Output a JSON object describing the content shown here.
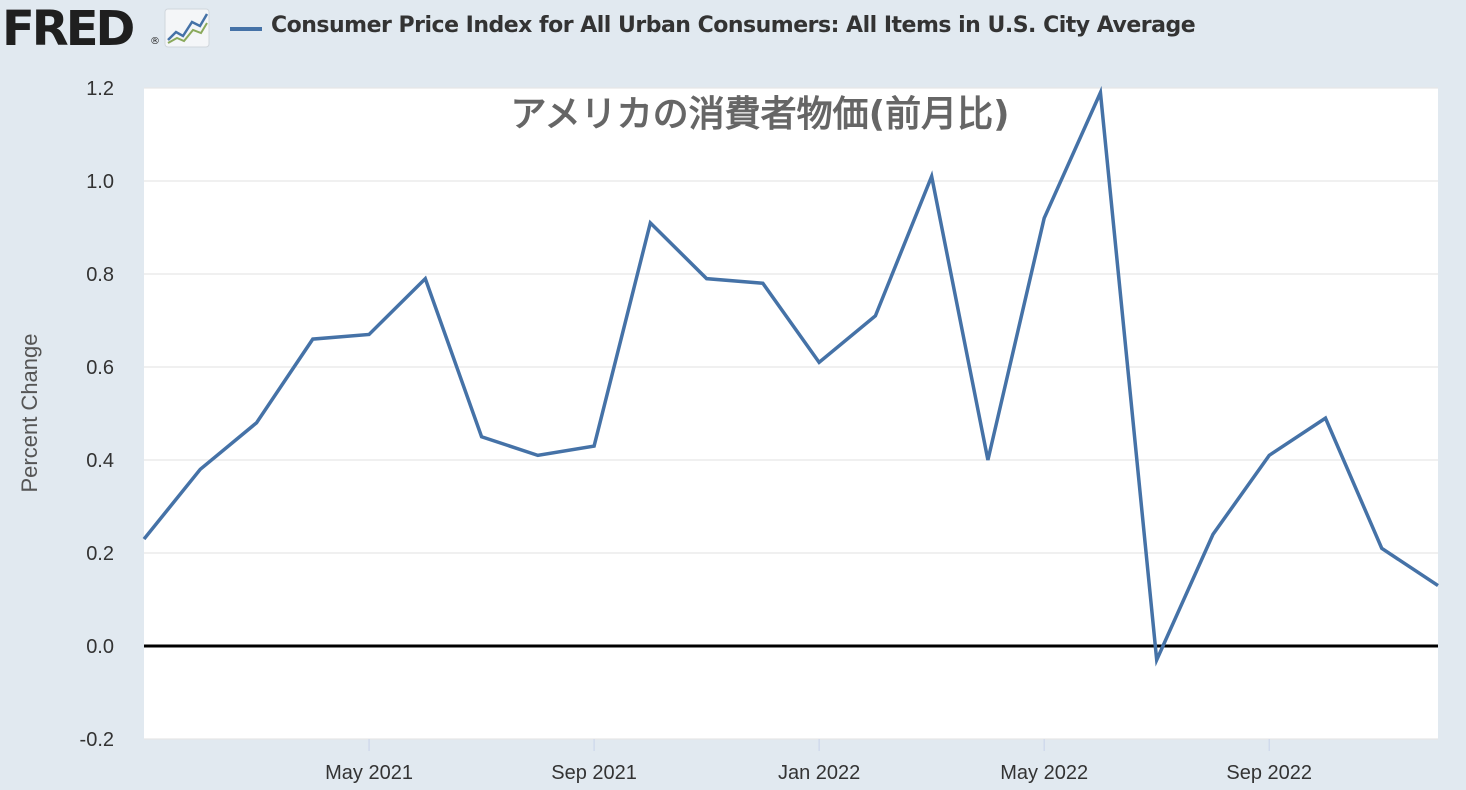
{
  "header": {
    "logo_text": "FRED",
    "logo_reg": "®",
    "series_title": "Consumer Price Index for All Urban Consumers: All Items in U.S. City Average"
  },
  "colors": {
    "series": "#4572a7",
    "plot_bg": "#ffffff",
    "page_bg": "#e1e9f0",
    "zero_line": "#000000",
    "grid": "#e6e6e6"
  },
  "chart_data": {
    "type": "line",
    "title": "アメリカの消費者物価(前月比)",
    "xlabel": "",
    "ylabel": "Percent Change",
    "ylim": [
      -0.2,
      1.2
    ],
    "yticks": [
      -0.2,
      0.0,
      0.2,
      0.4,
      0.6,
      0.8,
      1.0,
      1.2
    ],
    "ytick_labels": [
      "-0.2",
      "0.0",
      "0.2",
      "0.4",
      "0.6",
      "0.8",
      "1.0",
      "1.2"
    ],
    "xticks": [
      {
        "date": "2021-05",
        "label": "May 2021"
      },
      {
        "date": "2021-09",
        "label": "Sep 2021"
      },
      {
        "date": "2022-01",
        "label": "Jan 2022"
      },
      {
        "date": "2022-05",
        "label": "May 2022"
      },
      {
        "date": "2022-09",
        "label": "Sep 2022"
      }
    ],
    "xlim": [
      "2021-01",
      "2022-12"
    ],
    "grid": true,
    "legend": "top-left",
    "x": [
      "2021-01",
      "2021-02",
      "2021-03",
      "2021-04",
      "2021-05",
      "2021-06",
      "2021-07",
      "2021-08",
      "2021-09",
      "2021-10",
      "2021-11",
      "2021-12",
      "2022-01",
      "2022-02",
      "2022-03",
      "2022-04",
      "2022-05",
      "2022-06",
      "2022-07",
      "2022-08",
      "2022-09",
      "2022-10",
      "2022-11",
      "2022-12"
    ],
    "series": [
      {
        "values": [
          0.23,
          0.38,
          0.48,
          0.66,
          0.67,
          0.79,
          0.45,
          0.41,
          0.43,
          0.91,
          0.79,
          0.78,
          0.61,
          0.71,
          1.01,
          0.4,
          0.92,
          1.19,
          -0.03,
          0.24,
          0.41,
          0.49,
          0.21,
          0.13
        ]
      }
    ]
  }
}
